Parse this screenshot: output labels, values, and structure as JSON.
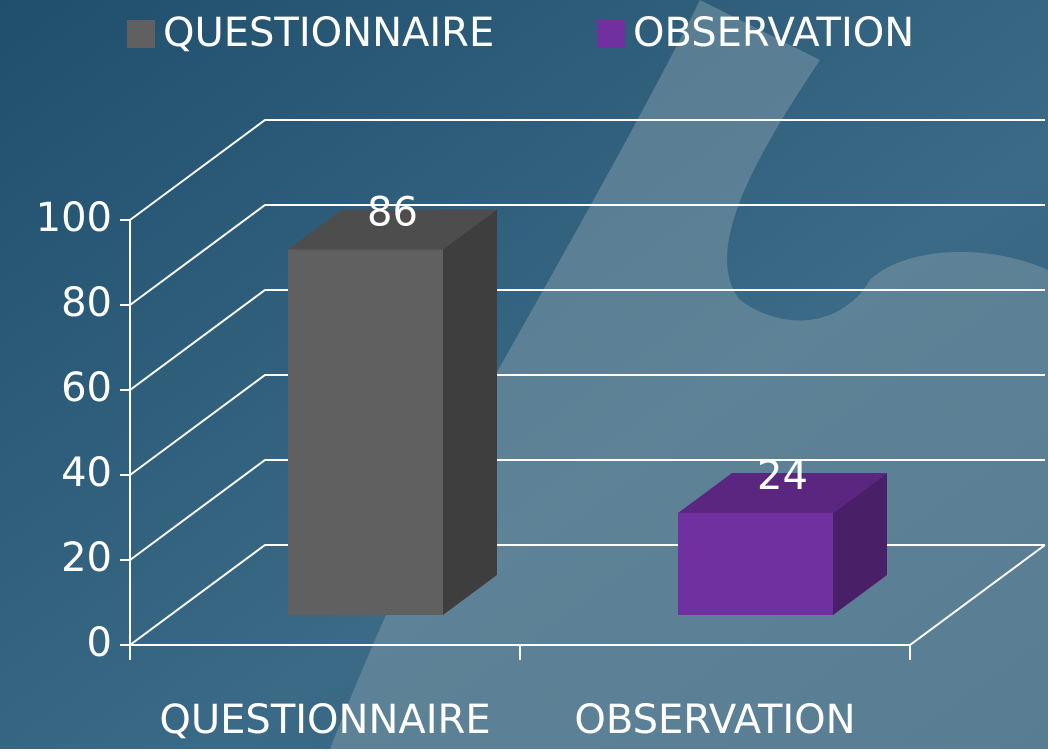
{
  "chart_data": {
    "type": "bar3d",
    "categories": [
      "QUESTIONNAIRE",
      "OBSERVATION"
    ],
    "values": [
      86,
      24
    ],
    "colors": [
      "#606060",
      "#7030a0"
    ],
    "ylim": [
      0,
      100
    ],
    "yticks": [
      0,
      20,
      40,
      60,
      80,
      100
    ],
    "grid": true,
    "legend": "top"
  }
}
